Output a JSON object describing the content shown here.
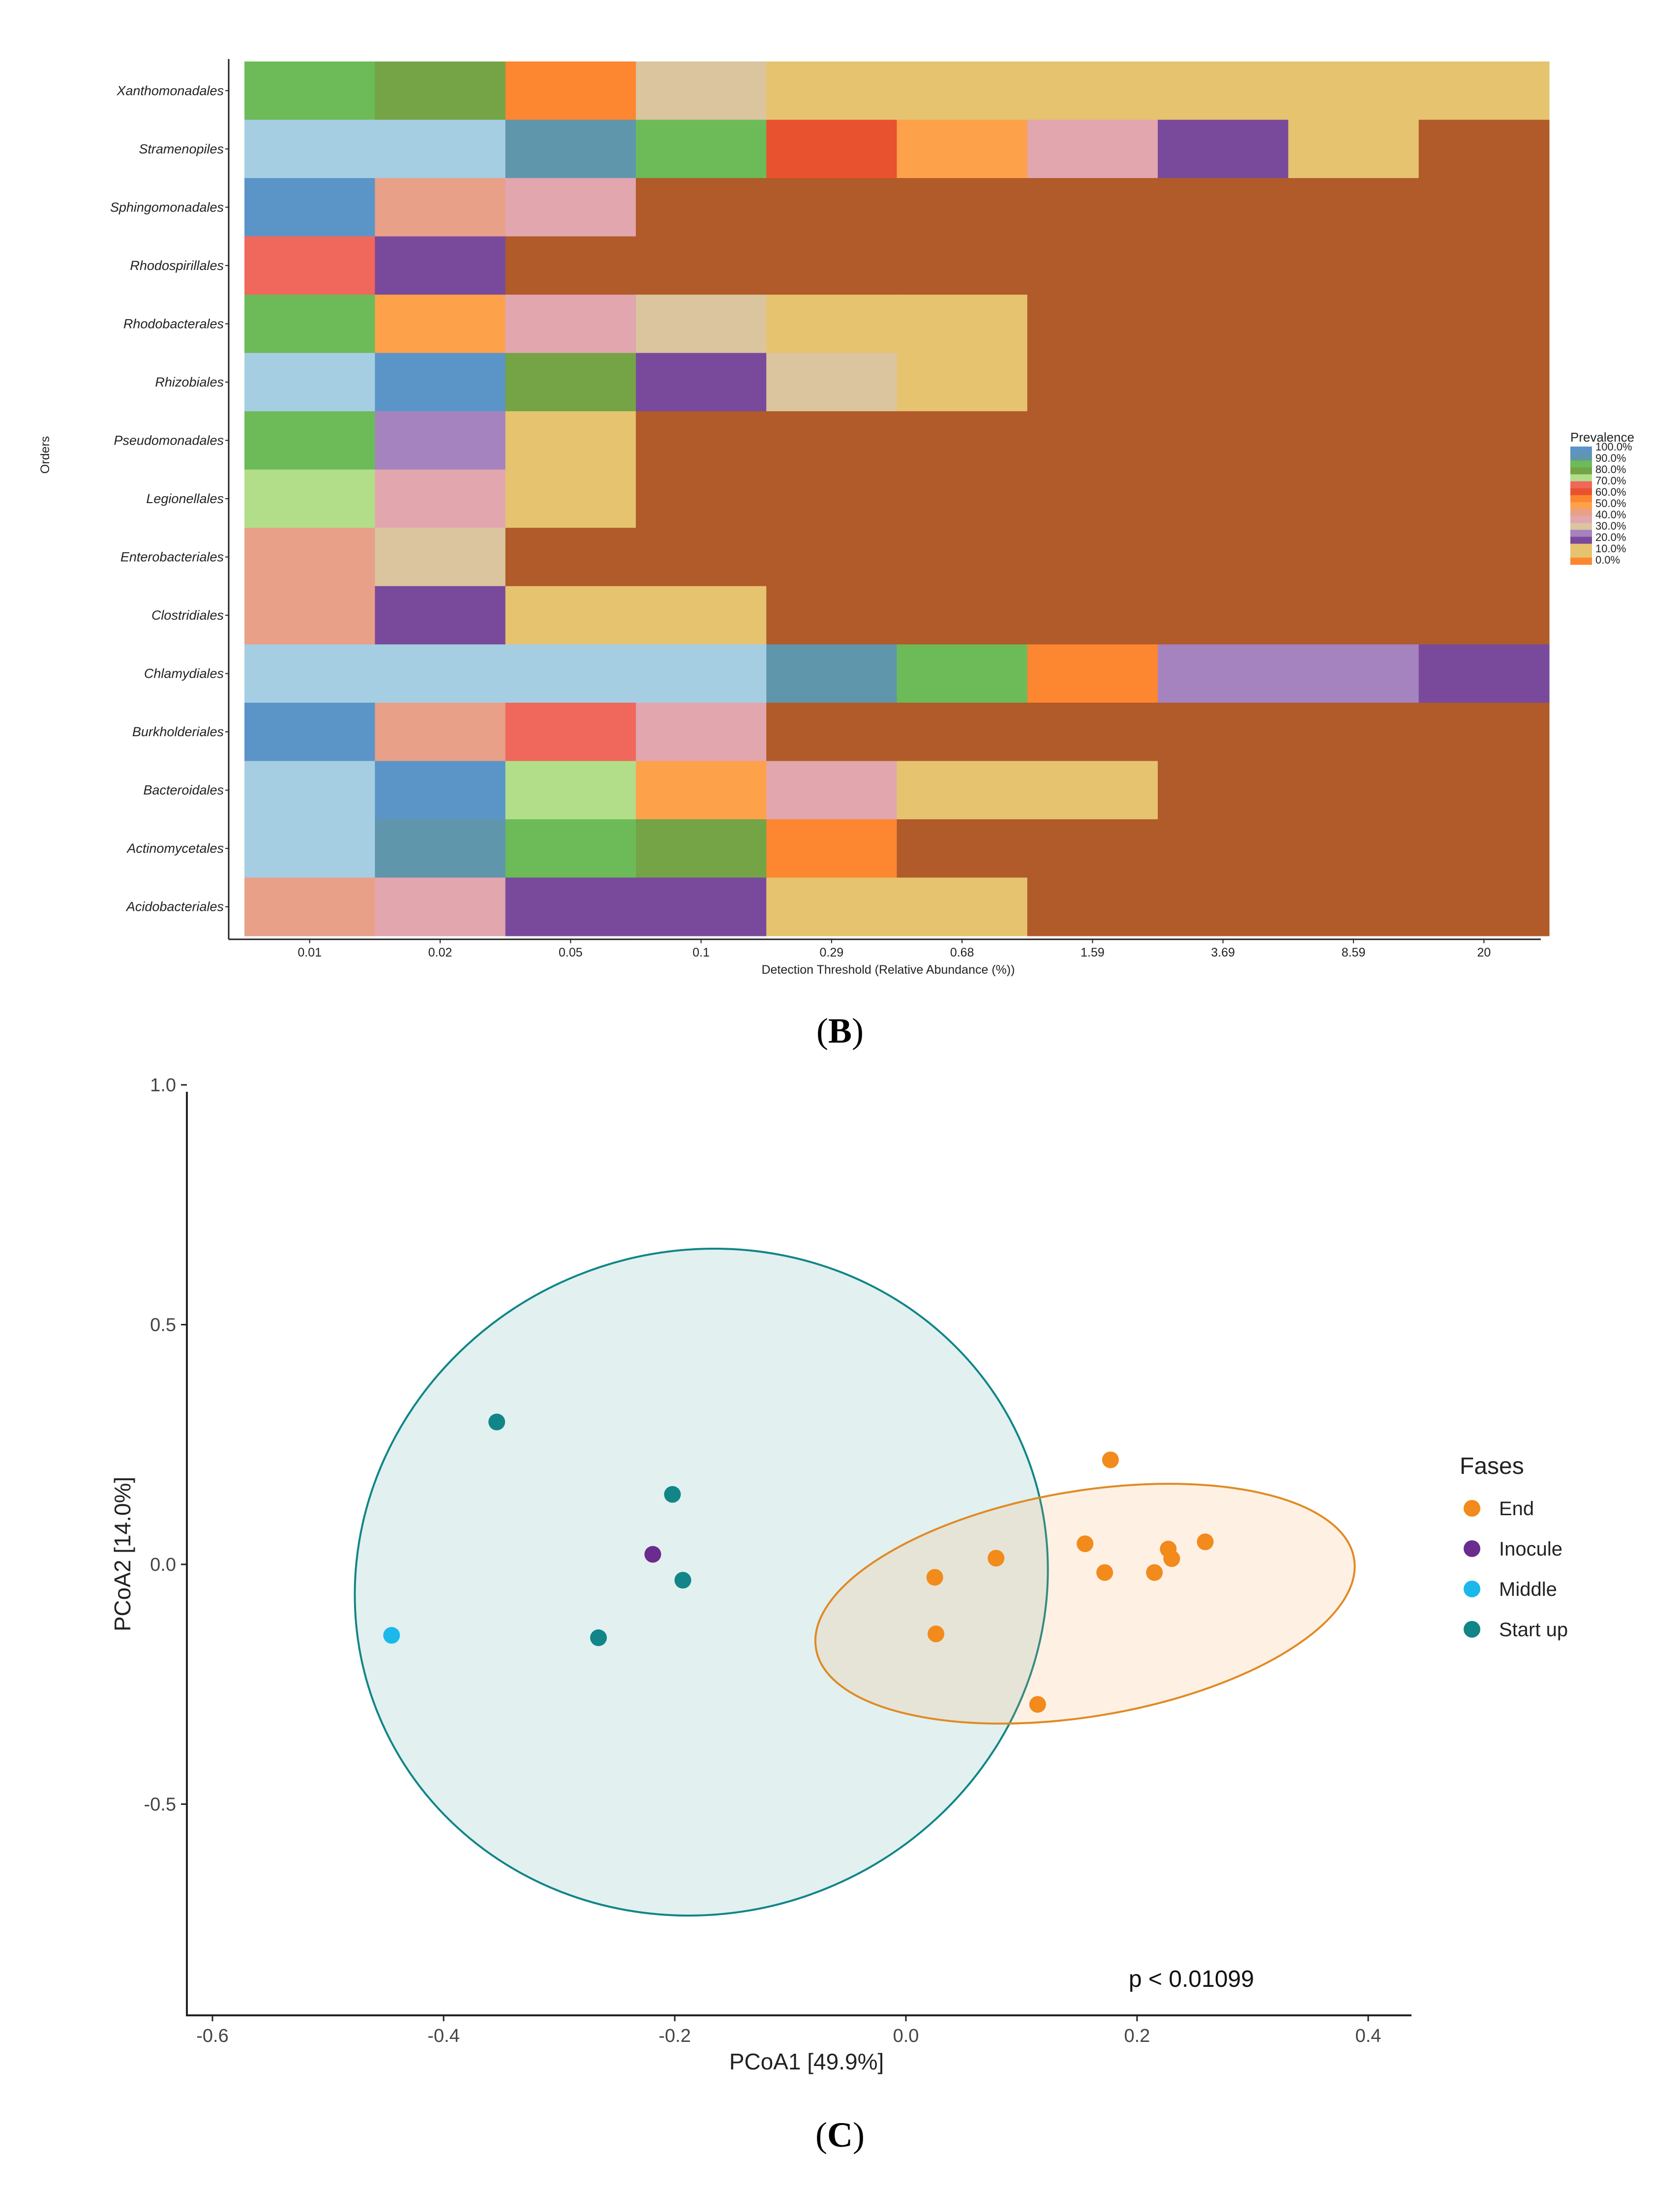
{
  "chart_data": [
    {
      "type": "heatmap",
      "panel": "(B)",
      "panel_letter": "B",
      "xlabel": "Detection Threshold (Relative Abundance (%))",
      "ylabel": "Orders",
      "x_categories": [
        "0.01",
        "0.02",
        "0.05",
        "0.1",
        "0.29",
        "0.68",
        "1.59",
        "3.69",
        "8.59",
        "20"
      ],
      "y_categories": [
        "Xanthomonadales",
        "Stramenopiles",
        "Sphingomonadales",
        "Rhodospirillales",
        "Rhodobacterales",
        "Rhizobiales",
        "Pseudomonadales",
        "Legionellales",
        "Enterobacteriales",
        "Clostridiales",
        "Chlamydiales",
        "Burkholderiales",
        "Bacteroidales",
        "Actinomycetales",
        "Acidobacteriales"
      ],
      "legend_title": "Prevalence",
      "legend_levels": [
        "100.0%",
        "90.0%",
        "80.0%",
        "70.0%",
        "60.0%",
        "50.0%",
        "40.0%",
        "30.0%",
        "20.0%",
        "10.0%",
        "0.0%"
      ],
      "legend_placement": "right",
      "palette": [
        "#a6cee3",
        "#6096ac",
        "#5b94c7",
        "#6cbb58",
        "#74a446",
        "#b2de8a",
        "#f0675c",
        "#e9522e",
        "#fd8630",
        "#fda24a",
        "#e8a088",
        "#e2a6ae",
        "#dac59f",
        "#e6c36f",
        "#a583be",
        "#794a9b",
        "#b15a2a"
      ],
      "values": [
        [
          80,
          75,
          40,
          28,
          10,
          10,
          10,
          10,
          10,
          10
        ],
        [
          95,
          95,
          90,
          80,
          60,
          40,
          30,
          20,
          10,
          0
        ],
        [
          98,
          35,
          30,
          0,
          0,
          0,
          0,
          0,
          0,
          0
        ],
        [
          65,
          20,
          0,
          0,
          0,
          0,
          0,
          0,
          0,
          0
        ],
        [
          80,
          40,
          30,
          28,
          10,
          10,
          0,
          0,
          0,
          0
        ],
        [
          95,
          98,
          75,
          20,
          28,
          10,
          0,
          0,
          0,
          0
        ],
        [
          80,
          25,
          10,
          0,
          0,
          0,
          0,
          0,
          0,
          0
        ],
        [
          70,
          30,
          10,
          0,
          0,
          0,
          0,
          0,
          0,
          0
        ],
        [
          35,
          28,
          0,
          0,
          0,
          0,
          0,
          0,
          0,
          0
        ],
        [
          35,
          20,
          10,
          10,
          0,
          0,
          0,
          0,
          0,
          0
        ],
        [
          95,
          95,
          95,
          95,
          90,
          80,
          50,
          25,
          25,
          20
        ],
        [
          98,
          35,
          65,
          30,
          0,
          0,
          0,
          0,
          0,
          0
        ],
        [
          95,
          98,
          70,
          40,
          30,
          10,
          10,
          0,
          0,
          0
        ],
        [
          95,
          90,
          80,
          75,
          50,
          0,
          0,
          0,
          0,
          0
        ],
        [
          35,
          30,
          20,
          20,
          10,
          10,
          0,
          0,
          0,
          0
        ]
      ],
      "cell_color_index": [
        [
          3,
          4,
          8,
          12,
          13,
          13,
          13,
          13,
          13,
          13
        ],
        [
          0,
          0,
          1,
          3,
          7,
          9,
          11,
          15,
          13,
          16
        ],
        [
          2,
          10,
          11,
          16,
          16,
          16,
          16,
          16,
          16,
          16
        ],
        [
          6,
          15,
          16,
          16,
          16,
          16,
          16,
          16,
          16,
          16
        ],
        [
          3,
          9,
          11,
          12,
          13,
          13,
          16,
          16,
          16,
          16
        ],
        [
          0,
          2,
          4,
          15,
          12,
          13,
          16,
          16,
          16,
          16
        ],
        [
          3,
          14,
          13,
          16,
          16,
          16,
          16,
          16,
          16,
          16
        ],
        [
          5,
          11,
          13,
          16,
          16,
          16,
          16,
          16,
          16,
          16
        ],
        [
          10,
          12,
          16,
          16,
          16,
          16,
          16,
          16,
          16,
          16
        ],
        [
          10,
          15,
          13,
          13,
          16,
          16,
          16,
          16,
          16,
          16
        ],
        [
          0,
          0,
          0,
          0,
          1,
          3,
          8,
          14,
          14,
          15
        ],
        [
          2,
          10,
          6,
          11,
          16,
          16,
          16,
          16,
          16,
          16
        ],
        [
          0,
          2,
          5,
          9,
          11,
          13,
          13,
          16,
          16,
          16
        ],
        [
          0,
          1,
          3,
          4,
          8,
          16,
          16,
          16,
          16,
          16
        ],
        [
          10,
          11,
          15,
          15,
          13,
          13,
          16,
          16,
          16,
          16
        ]
      ]
    },
    {
      "type": "scatter",
      "panel": "(C)",
      "panel_letter": "C",
      "xlabel": "PCoA1 [49.9%]",
      "ylabel": "PCoA2 [14.0%]",
      "xlim": [
        -0.62,
        0.44
      ],
      "ylim": [
        -0.88,
        1.02
      ],
      "xticks": [
        -0.6,
        -0.4,
        -0.2,
        0.0,
        0.2,
        0.4
      ],
      "xtick_labels": [
        "-0.6",
        "-0.4",
        "-0.2",
        "0.0",
        "0.2",
        "0.4"
      ],
      "yticks": [
        1.0,
        0.5,
        0.0,
        -0.5
      ],
      "ytick_labels": [
        "1.0",
        "0.5",
        "0.0",
        "-0.5"
      ],
      "legend_title": "Fases",
      "legend_placement": "right",
      "annotation": "p < 0.01099",
      "series": [
        {
          "name": "End",
          "color": "#f28a1c",
          "points": [
            [
              0.177,
              0.218
            ],
            [
              0.155,
              0.043
            ],
            [
              0.172,
              -0.017
            ],
            [
              0.227,
              0.032
            ],
            [
              0.23,
              0.012
            ],
            [
              0.215,
              -0.017
            ],
            [
              0.259,
              0.047
            ],
            [
              0.078,
              0.013
            ],
            [
              0.025,
              -0.027
            ],
            [
              0.026,
              -0.145
            ],
            [
              0.114,
              -0.292
            ]
          ]
        },
        {
          "name": "Inocule",
          "color": "#6a2c8e",
          "points": [
            [
              -0.219,
              0.021
            ]
          ]
        },
        {
          "name": "Middle",
          "color": "#1bb8ec",
          "points": [
            [
              -0.445,
              -0.148
            ]
          ]
        },
        {
          "name": "Start up",
          "color": "#118587",
          "points": [
            [
              -0.354,
              0.297
            ],
            [
              -0.202,
              0.146
            ],
            [
              -0.193,
              -0.033
            ],
            [
              -0.266,
              -0.153
            ]
          ]
        }
      ],
      "ellipses": [
        {
          "group": "Start up",
          "cx": -0.177,
          "cy": -0.037,
          "rx": 0.302,
          "ry": 0.69,
          "rotate_deg": -22,
          "stroke": "#118587",
          "fill": "#118587",
          "fill_opacity": 0.12
        },
        {
          "group": "End",
          "cx": 0.155,
          "cy": -0.082,
          "rx": 0.236,
          "ry": 0.235,
          "rotate_deg": -9.5,
          "stroke": "#e08a24",
          "fill": "#f6a55a",
          "fill_opacity": 0.16
        }
      ]
    }
  ]
}
